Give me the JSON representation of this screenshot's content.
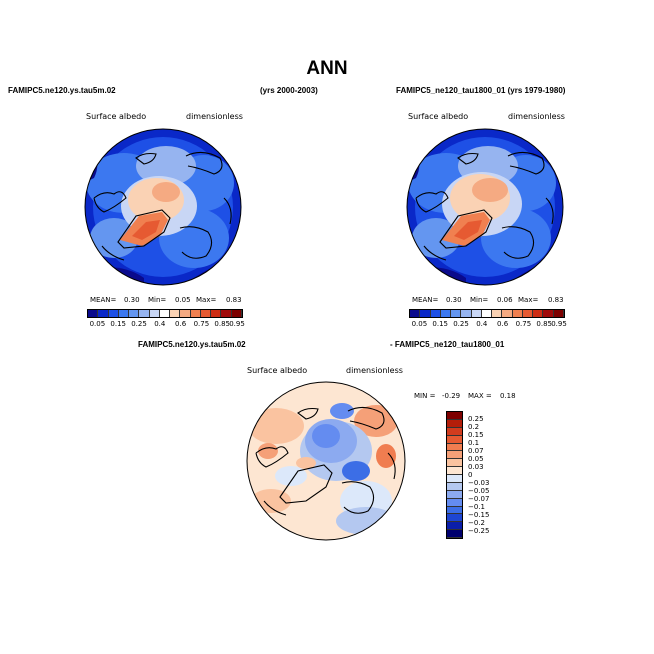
{
  "title": "ANN",
  "panels": {
    "top_left": {
      "case": "FAMIPC5.ne120.ys.tau5m.02",
      "years": "(yrs 2000-2003)",
      "field": "Surface albedo",
      "units": "dimensionless",
      "stats": {
        "mean_label": "MEAN=",
        "mean": "0.30",
        "min_label": "Min=",
        "min": "0.05",
        "max_label": "Max=",
        "max": "0.83"
      }
    },
    "top_right": {
      "case": "FAMIPC5_ne120_tau1800_01 (yrs 1979-1980)",
      "field": "Surface albedo",
      "units": "dimensionless",
      "stats": {
        "mean_label": "MEAN=",
        "mean": "0.30",
        "min_label": "Min=",
        "min": "0.06",
        "max_label": "Max=",
        "max": "0.83"
      }
    },
    "diff": {
      "case_a": "FAMIPC5.ne120.ys.tau5m.02",
      "case_b": "- FAMIPC5_ne120_tau1800_01",
      "field": "Surface albedo",
      "units": "dimensionless",
      "stats": {
        "min_label": "MIN =",
        "min": "-0.29",
        "max_label": "MAX =",
        "max": "0.18"
      }
    }
  },
  "colorbar_abs": {
    "labels": [
      "0.05",
      "0.15",
      "0.25",
      "0.4",
      "0.6",
      "0.75",
      "0.85",
      "0.95"
    ],
    "colors": [
      "#0a0a8c",
      "#0a28c8",
      "#1e50e6",
      "#3c78f0",
      "#6496f0",
      "#96b4f0",
      "#c8d6f5",
      "#ffffff",
      "#fad2b4",
      "#f5aa82",
      "#f08050",
      "#e65a32",
      "#cd2d14",
      "#a00a0a",
      "#7d0000"
    ]
  },
  "colorbar_diff": {
    "labels": [
      "0.25",
      "0.2",
      "0.15",
      "0.1",
      "0.07",
      "0.05",
      "0.03",
      "0",
      "−0.03",
      "−0.05",
      "−0.07",
      "−0.1",
      "−0.15",
      "−0.2",
      "−0.25"
    ],
    "colors": [
      "#7d0000",
      "#b41e0a",
      "#d23c1e",
      "#e65a32",
      "#f07d50",
      "#f5a078",
      "#fac3a0",
      "#fde6d2",
      "#dce8fa",
      "#b4c8f0",
      "#8caaf0",
      "#648cf0",
      "#3c6ee6",
      "#1e46d2",
      "#0a1eaa",
      "#00006e"
    ]
  }
}
